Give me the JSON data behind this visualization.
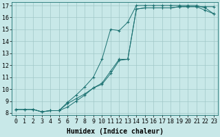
{
  "xlabel": "Humidex (Indice chaleur)",
  "background_color": "#c8e8e8",
  "grid_color": "#a0c8c8",
  "line_color": "#1a7070",
  "xlim": [
    -0.5,
    23.5
  ],
  "ylim": [
    7.8,
    17.3
  ],
  "xticks": [
    0,
    1,
    2,
    3,
    4,
    5,
    6,
    7,
    8,
    9,
    10,
    11,
    12,
    13,
    14,
    15,
    16,
    17,
    18,
    19,
    20,
    21,
    22,
    23
  ],
  "yticks": [
    8,
    9,
    10,
    11,
    12,
    13,
    14,
    15,
    16,
    17
  ],
  "line1_x": [
    0,
    1,
    2,
    3,
    4,
    5,
    6,
    7,
    8,
    9,
    10,
    11,
    12,
    13,
    14,
    15,
    16,
    17,
    18,
    19,
    20,
    21,
    22,
    23
  ],
  "line1_y": [
    8.3,
    8.3,
    8.3,
    8.1,
    8.2,
    8.2,
    8.8,
    9.2,
    9.6,
    10.1,
    10.4,
    11.3,
    12.4,
    12.5,
    16.7,
    16.8,
    16.8,
    16.8,
    16.8,
    16.9,
    16.9,
    16.9,
    16.9,
    16.9
  ],
  "line2_x": [
    0,
    1,
    2,
    3,
    4,
    5,
    6,
    7,
    8,
    9,
    10,
    11,
    12,
    13,
    14,
    15,
    16,
    17,
    18,
    19,
    20,
    21,
    22,
    23
  ],
  "line2_y": [
    8.3,
    8.3,
    8.3,
    8.1,
    8.2,
    8.2,
    8.5,
    9.0,
    9.5,
    10.1,
    10.5,
    11.5,
    12.5,
    12.5,
    16.7,
    16.8,
    16.8,
    16.8,
    16.8,
    16.9,
    16.9,
    16.9,
    16.6,
    16.3
  ],
  "line3_x": [
    0,
    2,
    3,
    4,
    5,
    6,
    7,
    8,
    9,
    10,
    11,
    12,
    13,
    14,
    15,
    16,
    17,
    18,
    19,
    20,
    21,
    22,
    23
  ],
  "line3_y": [
    8.3,
    8.3,
    8.1,
    8.2,
    8.2,
    8.9,
    9.5,
    10.2,
    11.0,
    12.5,
    15.0,
    14.9,
    15.6,
    17.0,
    17.0,
    17.0,
    17.0,
    17.0,
    17.0,
    17.0,
    17.0,
    16.8,
    16.3
  ],
  "font_size_label": 7,
  "font_size_tick": 6,
  "marker": "+"
}
